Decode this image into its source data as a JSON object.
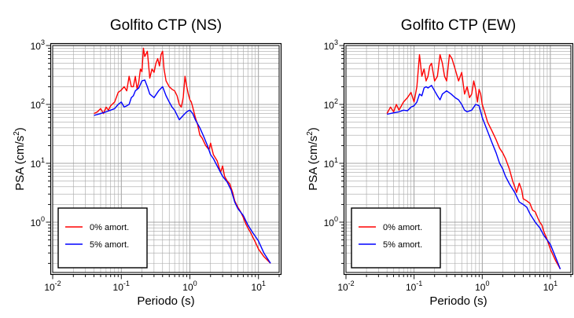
{
  "chart_data": [
    {
      "type": "line",
      "title": "Golfito CTP (NS)",
      "xlabel": "Periodo (s)",
      "ylabel": "PSA (cm/s2)",
      "xscale": "log",
      "yscale": "log",
      "xlim": [
        0.01,
        20
      ],
      "ylim": [
        0.14,
        1000
      ],
      "grid": true,
      "legend_position": "bottom-left",
      "xticks": [
        {
          "base": "10",
          "exp": "-2",
          "value": 0.01
        },
        {
          "base": "10",
          "exp": "-1",
          "value": 0.1
        },
        {
          "base": "10",
          "exp": "0",
          "value": 1
        },
        {
          "base": "10",
          "exp": "1",
          "value": 10
        }
      ],
      "yticks": [
        {
          "base": "10",
          "exp": "0",
          "value": 1
        },
        {
          "base": "10",
          "exp": "1",
          "value": 10
        },
        {
          "base": "10",
          "exp": "2",
          "value": 100
        },
        {
          "base": "10",
          "exp": "3",
          "value": 1000
        }
      ],
      "series": [
        {
          "name": "0% amort.",
          "color": "#ff0000",
          "x": [
            0.04,
            0.045,
            0.05,
            0.055,
            0.06,
            0.065,
            0.07,
            0.08,
            0.09,
            0.1,
            0.11,
            0.12,
            0.13,
            0.14,
            0.15,
            0.16,
            0.17,
            0.18,
            0.19,
            0.2,
            0.21,
            0.22,
            0.24,
            0.26,
            0.28,
            0.3,
            0.32,
            0.34,
            0.36,
            0.38,
            0.4,
            0.42,
            0.45,
            0.5,
            0.55,
            0.6,
            0.65,
            0.7,
            0.75,
            0.8,
            0.85,
            0.9,
            0.95,
            1.0,
            1.05,
            1.1,
            1.2,
            1.3,
            1.4,
            1.5,
            1.7,
            1.9,
            2.0,
            2.2,
            2.5,
            2.8,
            3.0,
            3.2,
            3.5,
            3.8,
            4.0,
            4.2,
            4.5,
            5.0,
            5.5,
            6.0,
            6.5,
            7.0,
            7.5,
            8.0,
            9.0,
            10.0,
            12.0,
            15.0
          ],
          "y": [
            70,
            75,
            85,
            70,
            90,
            80,
            95,
            110,
            160,
            175,
            200,
            170,
            300,
            200,
            200,
            300,
            180,
            240,
            400,
            360,
            900,
            650,
            800,
            280,
            400,
            350,
            500,
            600,
            450,
            700,
            800,
            400,
            250,
            200,
            180,
            170,
            140,
            100,
            90,
            130,
            300,
            200,
            150,
            120,
            110,
            90,
            60,
            45,
            30,
            27,
            20,
            17,
            22,
            14,
            11,
            7,
            9,
            6,
            5,
            4.5,
            3.8,
            3.2,
            2.3,
            1.8,
            1.5,
            1.2,
            0.95,
            0.8,
            0.7,
            0.6,
            0.46,
            0.35,
            0.26,
            0.2
          ]
        },
        {
          "name": "5% amort.",
          "color": "#0000ff",
          "x": [
            0.04,
            0.05,
            0.06,
            0.07,
            0.08,
            0.09,
            0.1,
            0.11,
            0.12,
            0.13,
            0.14,
            0.15,
            0.16,
            0.18,
            0.2,
            0.22,
            0.24,
            0.26,
            0.3,
            0.35,
            0.4,
            0.45,
            0.5,
            0.55,
            0.6,
            0.7,
            0.8,
            0.9,
            1.0,
            1.1,
            1.2,
            1.4,
            1.6,
            1.8,
            2.0,
            2.2,
            2.5,
            3.0,
            3.5,
            4.0,
            4.5,
            5.0,
            6.0,
            7.0,
            8.0,
            10.0,
            12.0,
            15.0
          ],
          "y": [
            65,
            70,
            75,
            80,
            85,
            100,
            110,
            90,
            95,
            100,
            130,
            140,
            170,
            190,
            250,
            260,
            200,
            150,
            130,
            170,
            200,
            140,
            110,
            90,
            80,
            55,
            65,
            75,
            80,
            70,
            55,
            40,
            28,
            20,
            14,
            12,
            9,
            6,
            4.8,
            3.5,
            2.2,
            1.7,
            1.3,
            0.9,
            0.7,
            0.48,
            0.3,
            0.2
          ]
        }
      ]
    },
    {
      "type": "line",
      "title": "Golfito CTP (EW)",
      "xlabel": "Periodo (s)",
      "ylabel": "PSA (cm/s2)",
      "xscale": "log",
      "yscale": "log",
      "xlim": [
        0.01,
        20
      ],
      "ylim": [
        0.14,
        1000
      ],
      "grid": true,
      "legend_position": "bottom-left",
      "xticks": [
        {
          "base": "10",
          "exp": "-2",
          "value": 0.01
        },
        {
          "base": "10",
          "exp": "-1",
          "value": 0.1
        },
        {
          "base": "10",
          "exp": "0",
          "value": 1
        },
        {
          "base": "10",
          "exp": "1",
          "value": 10
        }
      ],
      "yticks": [
        {
          "base": "10",
          "exp": "0",
          "value": 1
        },
        {
          "base": "10",
          "exp": "1",
          "value": 10
        },
        {
          "base": "10",
          "exp": "2",
          "value": 100
        },
        {
          "base": "10",
          "exp": "3",
          "value": 1000
        }
      ],
      "series": [
        {
          "name": "0% amort.",
          "color": "#ff0000",
          "x": [
            0.04,
            0.045,
            0.05,
            0.055,
            0.06,
            0.07,
            0.08,
            0.09,
            0.1,
            0.11,
            0.12,
            0.13,
            0.14,
            0.15,
            0.16,
            0.17,
            0.18,
            0.2,
            0.22,
            0.24,
            0.26,
            0.28,
            0.3,
            0.33,
            0.36,
            0.4,
            0.45,
            0.5,
            0.55,
            0.6,
            0.65,
            0.7,
            0.75,
            0.8,
            0.85,
            0.9,
            0.95,
            1.0,
            1.1,
            1.2,
            1.4,
            1.6,
            1.8,
            2.0,
            2.2,
            2.5,
            2.8,
            3.0,
            3.2,
            3.5,
            3.8,
            4.0,
            4.5,
            5.0,
            5.5,
            6.0,
            6.5,
            7.0,
            7.5,
            8.0,
            9.0,
            10.0,
            12.0,
            14.0
          ],
          "y": [
            70,
            90,
            75,
            100,
            80,
            110,
            130,
            160,
            110,
            200,
            700,
            300,
            400,
            250,
            300,
            450,
            500,
            250,
            300,
            700,
            500,
            300,
            250,
            700,
            600,
            400,
            250,
            350,
            150,
            200,
            130,
            150,
            250,
            180,
            110,
            180,
            150,
            100,
            70,
            50,
            35,
            25,
            18,
            15,
            12,
            8,
            5,
            4,
            3.2,
            4.6,
            3.5,
            2.5,
            2.3,
            2.1,
            1.6,
            1.5,
            1.2,
            1.0,
            0.9,
            0.7,
            0.5,
            0.35,
            0.22,
            0.16
          ]
        },
        {
          "name": "5% amort.",
          "color": "#0000ff",
          "x": [
            0.04,
            0.05,
            0.06,
            0.07,
            0.08,
            0.09,
            0.1,
            0.11,
            0.12,
            0.13,
            0.14,
            0.15,
            0.16,
            0.18,
            0.2,
            0.22,
            0.24,
            0.26,
            0.3,
            0.35,
            0.4,
            0.45,
            0.5,
            0.55,
            0.6,
            0.7,
            0.8,
            0.9,
            1.0,
            1.1,
            1.2,
            1.4,
            1.6,
            1.8,
            2.0,
            2.2,
            2.5,
            3.0,
            3.5,
            4.0,
            4.5,
            5.0,
            6.0,
            7.0,
            8.0,
            10.0,
            12.0,
            14.0
          ],
          "y": [
            68,
            72,
            75,
            80,
            78,
            90,
            95,
            110,
            150,
            140,
            190,
            200,
            190,
            210,
            170,
            140,
            120,
            150,
            170,
            150,
            130,
            120,
            100,
            80,
            75,
            80,
            100,
            95,
            60,
            45,
            35,
            22,
            15,
            10,
            8,
            6,
            4.5,
            3.2,
            2.2,
            2.0,
            1.8,
            1.4,
            1.0,
            0.8,
            0.6,
            0.42,
            0.25,
            0.16
          ]
        }
      ]
    }
  ]
}
